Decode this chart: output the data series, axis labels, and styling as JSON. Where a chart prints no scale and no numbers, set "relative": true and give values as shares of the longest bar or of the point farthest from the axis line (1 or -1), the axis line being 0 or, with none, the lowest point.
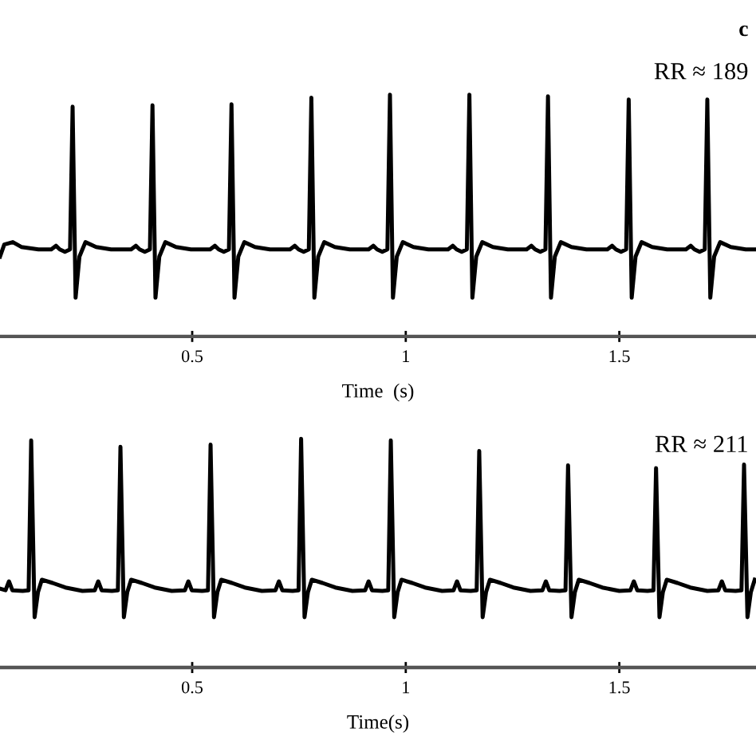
{
  "chart_data": [
    {
      "type": "line",
      "relative": true,
      "xlabel": "Time  (s)",
      "annotations": [
        "c",
        "RR ≈ 189"
      ],
      "xlim": [
        0.05,
        1.82
      ],
      "xticks": [
        0.5,
        1,
        1.5
      ],
      "series": [
        {
          "color": "#000000",
          "x": [
            0.05,
            0.06,
            0.08,
            0.1,
            0.14,
            0.17,
            0.181,
            0.19,
            0.202,
            0.214,
            0.22,
            0.227,
            0.236,
            0.25,
            0.275,
            0.31,
            0.357,
            0.368,
            0.377,
            0.389,
            0.401,
            0.407,
            0.414,
            0.423,
            0.437,
            0.462,
            0.497,
            0.542,
            0.553,
            0.562,
            0.574,
            0.586,
            0.592,
            0.599,
            0.608,
            0.622,
            0.647,
            0.682,
            0.729,
            0.74,
            0.749,
            0.761,
            0.773,
            0.779,
            0.786,
            0.795,
            0.809,
            0.834,
            0.869,
            0.913,
            0.924,
            0.933,
            0.945,
            0.957,
            0.963,
            0.97,
            0.979,
            0.993,
            1.018,
            1.053,
            1.099,
            1.11,
            1.119,
            1.131,
            1.143,
            1.149,
            1.156,
            1.165,
            1.179,
            1.204,
            1.239,
            1.283,
            1.294,
            1.303,
            1.315,
            1.327,
            1.333,
            1.34,
            1.349,
            1.363,
            1.388,
            1.423,
            1.472,
            1.483,
            1.492,
            1.504,
            1.516,
            1.522,
            1.529,
            1.538,
            1.552,
            1.577,
            1.612,
            1.656,
            1.667,
            1.676,
            1.688,
            1.7,
            1.706,
            1.713,
            1.722,
            1.736,
            1.761,
            1.796,
            1.82
          ],
          "values": [
            0.33,
            0.38,
            0.39,
            0.37,
            0.36,
            0.36,
            0.375,
            0.36,
            0.35,
            0.36,
            0.95,
            0.16,
            0.33,
            0.39,
            0.37,
            0.36,
            0.36,
            0.375,
            0.36,
            0.35,
            0.36,
            0.956,
            0.16,
            0.33,
            0.39,
            0.37,
            0.36,
            0.36,
            0.375,
            0.36,
            0.35,
            0.36,
            0.96,
            0.16,
            0.33,
            0.39,
            0.37,
            0.36,
            0.36,
            0.375,
            0.36,
            0.35,
            0.36,
            0.987,
            0.16,
            0.33,
            0.39,
            0.37,
            0.36,
            0.36,
            0.375,
            0.36,
            0.35,
            0.36,
            1,
            0.16,
            0.33,
            0.39,
            0.37,
            0.36,
            0.36,
            0.375,
            0.36,
            0.35,
            0.36,
            1,
            0.16,
            0.33,
            0.39,
            0.37,
            0.36,
            0.36,
            0.375,
            0.36,
            0.35,
            0.36,
            0.993,
            0.16,
            0.33,
            0.39,
            0.37,
            0.36,
            0.36,
            0.375,
            0.36,
            0.35,
            0.36,
            0.98,
            0.16,
            0.33,
            0.39,
            0.37,
            0.36,
            0.36,
            0.375,
            0.36,
            0.35,
            0.36,
            0.98,
            0.16,
            0.33,
            0.39,
            0.37,
            0.36,
            0.36
          ]
        }
      ]
    },
    {
      "type": "line",
      "relative": true,
      "xlabel": "Time(s)",
      "annotations": [
        "RR ≈ 211"
      ],
      "xlim": [
        0.05,
        1.82
      ],
      "xticks": [
        0.5,
        1,
        1.5
      ],
      "series": [
        {
          "color": "#000000",
          "x": [
            0.05,
            0.063,
            0.071,
            0.079,
            0.103,
            0.117,
            0.123,
            0.131,
            0.139,
            0.148,
            0.173,
            0.203,
            0.243,
            0.272,
            0.28,
            0.288,
            0.312,
            0.326,
            0.332,
            0.34,
            0.348,
            0.357,
            0.382,
            0.412,
            0.452,
            0.483,
            0.491,
            0.499,
            0.523,
            0.537,
            0.543,
            0.551,
            0.559,
            0.568,
            0.593,
            0.623,
            0.663,
            0.695,
            0.703,
            0.711,
            0.735,
            0.749,
            0.755,
            0.763,
            0.771,
            0.78,
            0.805,
            0.835,
            0.875,
            0.905,
            0.913,
            0.921,
            0.945,
            0.959,
            0.965,
            0.973,
            0.981,
            0.99,
            1.015,
            1.045,
            1.085,
            1.112,
            1.12,
            1.128,
            1.152,
            1.166,
            1.172,
            1.18,
            1.188,
            1.197,
            1.222,
            1.252,
            1.292,
            1.32,
            1.328,
            1.336,
            1.36,
            1.374,
            1.38,
            1.388,
            1.396,
            1.405,
            1.43,
            1.46,
            1.5,
            1.526,
            1.534,
            1.542,
            1.566,
            1.58,
            1.586,
            1.594,
            1.602,
            1.611,
            1.636,
            1.666,
            1.706,
            1.732,
            1.74,
            1.748,
            1.772,
            1.786,
            1.792,
            1.8,
            1.808,
            1.817
          ],
          "values": [
            0.345,
            0.338,
            0.377,
            0.338,
            0.335,
            0.338,
            0.993,
            0.22,
            0.33,
            0.384,
            0.37,
            0.35,
            0.335,
            0.338,
            0.377,
            0.338,
            0.335,
            0.338,
            0.965,
            0.22,
            0.33,
            0.384,
            0.37,
            0.35,
            0.335,
            0.338,
            0.377,
            0.338,
            0.335,
            0.338,
            0.975,
            0.22,
            0.33,
            0.384,
            0.37,
            0.35,
            0.335,
            0.338,
            0.377,
            0.338,
            0.335,
            0.338,
            1,
            0.22,
            0.33,
            0.384,
            0.37,
            0.35,
            0.335,
            0.338,
            0.377,
            0.338,
            0.335,
            0.338,
            0.993,
            0.22,
            0.33,
            0.384,
            0.37,
            0.35,
            0.335,
            0.338,
            0.377,
            0.338,
            0.335,
            0.338,
            0.947,
            0.22,
            0.33,
            0.384,
            0.37,
            0.35,
            0.335,
            0.338,
            0.377,
            0.338,
            0.335,
            0.338,
            0.884,
            0.22,
            0.33,
            0.384,
            0.37,
            0.35,
            0.335,
            0.338,
            0.377,
            0.338,
            0.335,
            0.338,
            0.872,
            0.22,
            0.33,
            0.384,
            0.37,
            0.35,
            0.335,
            0.338,
            0.377,
            0.338,
            0.335,
            0.338,
            0.888,
            0.22,
            0.33,
            0.384
          ]
        }
      ]
    }
  ]
}
